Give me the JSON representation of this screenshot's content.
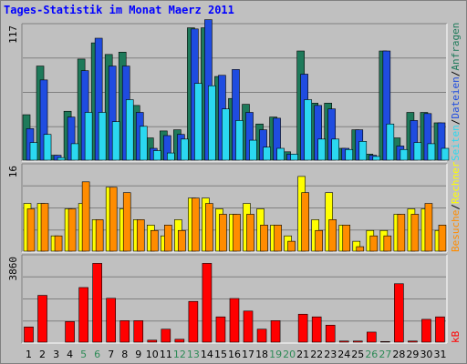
{
  "title": "Tages-Statistik im Monat Maerz 2011",
  "colors": {
    "background": "#c0c0c0",
    "title": "#0000ff",
    "frame": "#808080",
    "grid": "#808080",
    "axis_text": "#000000",
    "weekend_day": "#2e8b57",
    "anfragen": "#1e7a5a",
    "dateien": "#1f4ce0",
    "seiten": "#2bd8f0",
    "besuche": "#ff8c00",
    "rechner": "#ffff00",
    "kb": "#ff0000"
  },
  "chart_data": [
    {
      "type": "bar",
      "title": "Tages-Statistik im Monat Maerz 2011",
      "ymax_label": "117",
      "ylim": [
        0,
        117
      ],
      "legend": [
        "Anfragen",
        "Dateien",
        "Seiten"
      ],
      "legend_sep": "/",
      "categories": [
        "1",
        "2",
        "3",
        "4",
        "5",
        "6",
        "7",
        "8",
        "9",
        "10",
        "11",
        "12",
        "13",
        "14",
        "15",
        "16",
        "17",
        "18",
        "19",
        "20",
        "21",
        "22",
        "23",
        "24",
        "25",
        "26",
        "27",
        "28",
        "29",
        "30",
        "31"
      ],
      "weekend": [
        5,
        6,
        12,
        13,
        19,
        20,
        26,
        27
      ],
      "series": [
        {
          "name": "Anfragen",
          "color_key": "anfragen",
          "values": [
            40,
            82,
            5,
            43,
            88,
            102,
            92,
            94,
            48,
            20,
            26,
            27,
            115,
            115,
            73,
            54,
            49,
            32,
            38,
            8,
            95,
            50,
            50,
            11,
            27,
            6,
            95,
            20,
            42,
            42,
            33
          ]
        },
        {
          "name": "Dateien",
          "color_key": "dateien",
          "values": [
            28,
            70,
            5,
            38,
            78,
            106,
            82,
            82,
            42,
            11,
            22,
            23,
            114,
            122,
            74,
            79,
            42,
            27,
            37,
            6,
            75,
            48,
            45,
            11,
            27,
            5,
            95,
            13,
            35,
            41,
            33
          ]
        },
        {
          "name": "Seiten",
          "color_key": "seiten",
          "values": [
            16,
            23,
            3,
            15,
            42,
            42,
            34,
            53,
            30,
            9,
            7,
            19,
            67,
            65,
            45,
            35,
            18,
            12,
            11,
            6,
            53,
            19,
            19,
            10,
            17,
            4,
            32,
            10,
            16,
            15,
            11
          ]
        }
      ]
    },
    {
      "type": "bar",
      "ymax_label": "16",
      "ylim": [
        0,
        16
      ],
      "legend": [
        "Rechner",
        "Besuche"
      ],
      "legend_sep": "/",
      "series": [
        {
          "name": "Rechner",
          "color_key": "rechner",
          "values": [
            9,
            9,
            3,
            8,
            9,
            6,
            12,
            8,
            6,
            5,
            3,
            6,
            10,
            10,
            8,
            7,
            9,
            8,
            5,
            3,
            14,
            6,
            11,
            5,
            2,
            4,
            4,
            7,
            8,
            8,
            4
          ]
        },
        {
          "name": "Besuche",
          "color_key": "besuche",
          "values": [
            8,
            9,
            3,
            8,
            13,
            6,
            12,
            11,
            6,
            4,
            5,
            4,
            10,
            9,
            7,
            7,
            7,
            5,
            5,
            2,
            11,
            4,
            6,
            5,
            1,
            3,
            3,
            7,
            7,
            9,
            5
          ]
        }
      ]
    },
    {
      "type": "bar",
      "ymax_label": "3860",
      "ylim": [
        0,
        3860
      ],
      "legend": [
        "kB"
      ],
      "series": [
        {
          "name": "kB",
          "color_key": "kb",
          "values": [
            720,
            2130,
            30,
            960,
            2480,
            3560,
            2000,
            1000,
            1000,
            130,
            620,
            170,
            1860,
            3560,
            1170,
            1990,
            1430,
            620,
            1000,
            40,
            1290,
            1170,
            800,
            90,
            90,
            490,
            70,
            2650,
            90,
            1060,
            1170
          ]
        }
      ]
    }
  ]
}
